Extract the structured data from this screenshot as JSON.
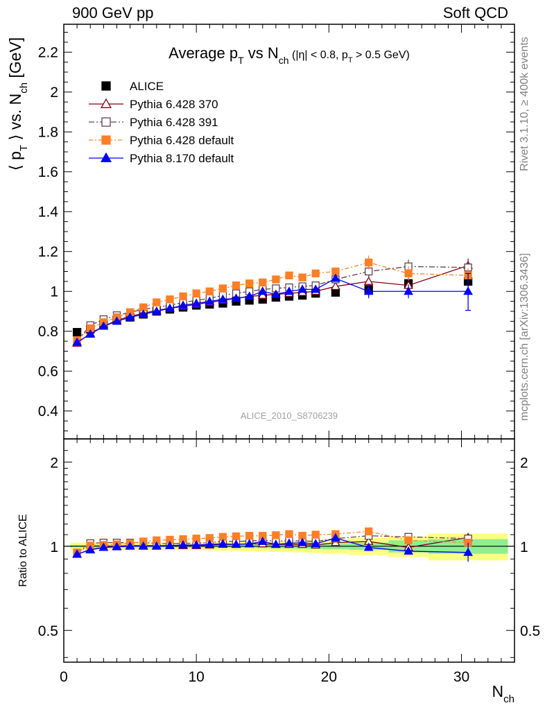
{
  "corner_labels": {
    "left": "900 GeV pp",
    "right": "Soft QCD"
  },
  "side_labels": {
    "rivet": "Rivet 3.1.10, ≥ 400k events",
    "mcplots": "mcplots.cern.ch [arXiv:1306.3436]"
  },
  "analysis_id": "ALICE_2010_S8706239",
  "chart_data": [
    {
      "type": "scatter",
      "title": "Average pT vs Nch (|η| < 0.8, pT > 0.5 GeV)",
      "xlabel": "Nch",
      "ylabel": "⟨ pT ⟩ vs. Nch [GeV]",
      "xlim": [
        0,
        34
      ],
      "ylim": [
        0.26,
        2.34
      ],
      "x_ticks": [
        0,
        10,
        20,
        30
      ],
      "y_ticks": [
        0.4,
        0.6,
        0.8,
        1,
        1.2,
        1.4,
        1.6,
        1.8,
        2,
        2.2
      ],
      "y_tick_labels": [
        "0.4",
        "0.6",
        "0.8",
        "1",
        "1.2",
        "1.4",
        "1.6",
        "1.8",
        "2",
        "2.2"
      ],
      "legend_position": "top-left",
      "x": [
        1,
        2,
        3,
        4,
        5,
        6,
        7,
        8,
        9,
        10,
        11,
        12,
        13,
        14,
        15,
        16,
        17,
        18,
        19,
        20.5,
        23,
        26,
        30.5
      ],
      "series": [
        {
          "name": "ALICE",
          "color": "#000000",
          "marker": "filled-square",
          "values": [
            0.795,
            0.81,
            0.835,
            0.855,
            0.87,
            0.885,
            0.9,
            0.91,
            0.92,
            0.93,
            0.935,
            0.94,
            0.95,
            0.955,
            0.96,
            0.97,
            0.975,
            0.98,
            0.99,
            0.995,
            1.01,
            1.04,
            1.05
          ]
        },
        {
          "name": "Pythia 6.428 370",
          "color": "#800010",
          "marker": "open-triangle",
          "values": [
            0.74,
            0.79,
            0.825,
            0.855,
            0.875,
            0.89,
            0.905,
            0.915,
            0.925,
            0.935,
            0.945,
            0.955,
            0.965,
            0.975,
            0.98,
            0.985,
            0.99,
            0.995,
            1.0,
            1.025,
            1.05,
            1.03,
            1.13
          ]
        },
        {
          "name": "Pythia 6.428 391",
          "color": "#604050",
          "marker": "open-square",
          "values": [
            0.75,
            0.83,
            0.86,
            0.88,
            0.895,
            0.91,
            0.92,
            0.93,
            0.945,
            0.955,
            0.965,
            0.98,
            0.99,
            1.0,
            1.01,
            1.015,
            1.02,
            1.025,
            1.03,
            1.06,
            1.1,
            1.125,
            1.12
          ]
        },
        {
          "name": "Pythia 6.428 default",
          "color": "#ff7f27",
          "marker": "filled-square",
          "values": [
            0.755,
            0.815,
            0.845,
            0.87,
            0.895,
            0.92,
            0.945,
            0.96,
            0.975,
            0.99,
            1.0,
            1.015,
            1.03,
            1.04,
            1.045,
            1.06,
            1.08,
            1.07,
            1.09,
            1.1,
            1.145,
            1.09,
            1.08
          ]
        },
        {
          "name": "Pythia 8.170 default",
          "color": "#0000ff",
          "marker": "filled-triangle",
          "values": [
            0.745,
            0.785,
            0.825,
            0.85,
            0.87,
            0.885,
            0.9,
            0.915,
            0.93,
            0.94,
            0.95,
            0.96,
            0.965,
            0.975,
            1.0,
            0.985,
            1.0,
            1.01,
            1.01,
            1.065,
            1.0,
            1.0,
            1.0
          ]
        }
      ]
    },
    {
      "type": "scatter",
      "title": "",
      "xlabel": "Nch",
      "ylabel": "Ratio to ALICE",
      "xlim": [
        0,
        34
      ],
      "y_scale": "log",
      "ylim": [
        0.385,
        2.42
      ],
      "x_ticks": [
        0,
        10,
        20,
        30
      ],
      "x_tick_labels": [
        "0",
        "10",
        "20",
        "30"
      ],
      "y_ticks": [
        0.5,
        1,
        2
      ],
      "y_tick_labels": [
        "0.5",
        "1",
        "2"
      ],
      "band_inner_color": "#90ee90",
      "band_outer_color": "#ffff80",
      "x": [
        1,
        2,
        3,
        4,
        5,
        6,
        7,
        8,
        9,
        10,
        11,
        12,
        13,
        14,
        15,
        16,
        17,
        18,
        19,
        20.5,
        23,
        26,
        30.5
      ],
      "series": [
        {
          "name": "Pythia 6.428 370",
          "color": "#800010",
          "marker": "open-triangle",
          "values": [
            0.935,
            0.975,
            0.99,
            1.0,
            1.005,
            1.005,
            1.005,
            1.005,
            1.005,
            1.005,
            1.01,
            1.015,
            1.015,
            1.02,
            1.02,
            1.015,
            1.015,
            1.015,
            1.01,
            1.03,
            1.04,
            0.99,
            1.075
          ]
        },
        {
          "name": "Pythia 6.428 391",
          "color": "#604050",
          "marker": "open-square",
          "values": [
            0.945,
            1.025,
            1.03,
            1.03,
            1.03,
            1.03,
            1.025,
            1.02,
            1.025,
            1.025,
            1.03,
            1.04,
            1.04,
            1.045,
            1.05,
            1.045,
            1.045,
            1.045,
            1.04,
            1.065,
            1.09,
            1.08,
            1.065
          ]
        },
        {
          "name": "Pythia 6.428 default",
          "color": "#ff7f27",
          "marker": "filled-square",
          "values": [
            0.95,
            1.005,
            1.01,
            1.015,
            1.025,
            1.04,
            1.05,
            1.055,
            1.06,
            1.065,
            1.07,
            1.08,
            1.085,
            1.09,
            1.09,
            1.095,
            1.105,
            1.09,
            1.1,
            1.105,
            1.13,
            1.05,
            1.03
          ]
        },
        {
          "name": "Pythia 8.170 default",
          "color": "#0000ff",
          "marker": "filled-triangle",
          "values": [
            0.937,
            0.97,
            0.99,
            0.995,
            1.0,
            1.0,
            1.0,
            1.005,
            1.01,
            1.01,
            1.015,
            1.02,
            1.015,
            1.02,
            1.04,
            1.015,
            1.025,
            1.03,
            1.02,
            1.07,
            0.99,
            0.96,
            0.95
          ]
        }
      ]
    }
  ]
}
